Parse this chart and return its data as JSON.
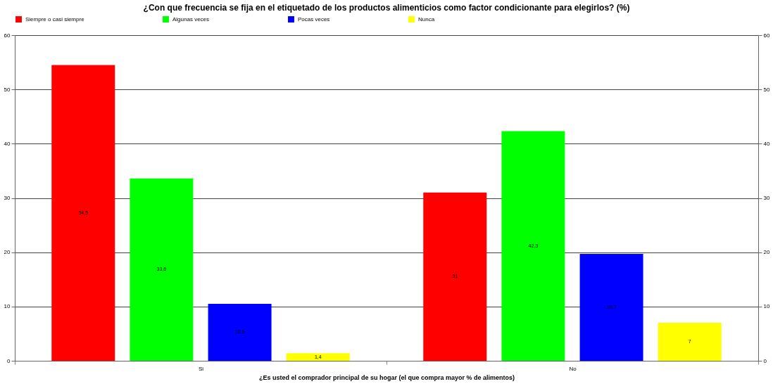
{
  "chart_data": {
    "type": "bar",
    "title": "¿Con que frecuencia se fija en el etiquetado de los productos alimenticios como factor condicionante para elegirlos? (%)",
    "xlabel": "¿Es usted el comprador principal de su hogar (el que compra mayor % de alimentos)",
    "categories": [
      "Si",
      "No"
    ],
    "series": [
      {
        "name": "Siempre o casi siempre",
        "color": "#ff0000",
        "values": [
          54.5,
          31
        ],
        "value_labels": [
          "54,5",
          "31"
        ]
      },
      {
        "name": "Algunas veces",
        "color": "#00ff00",
        "values": [
          33.6,
          42.3
        ],
        "value_labels": [
          "33,6",
          "42,3"
        ]
      },
      {
        "name": "Pocas veces",
        "color": "#0000ff",
        "values": [
          10.5,
          19.7
        ],
        "value_labels": [
          "10,5",
          "19,7"
        ]
      },
      {
        "name": "Nunca",
        "color": "#ffff00",
        "values": [
          1.4,
          7
        ],
        "value_labels": [
          "1,4",
          "7"
        ]
      }
    ],
    "ylim": [
      0,
      60
    ],
    "yticks": [
      0,
      10,
      20,
      30,
      40,
      50,
      60
    ],
    "y2lim": [
      0,
      60
    ],
    "y2ticks": [
      0,
      10,
      20,
      30,
      40,
      50,
      60
    ],
    "grid": "y",
    "legend": "top"
  }
}
